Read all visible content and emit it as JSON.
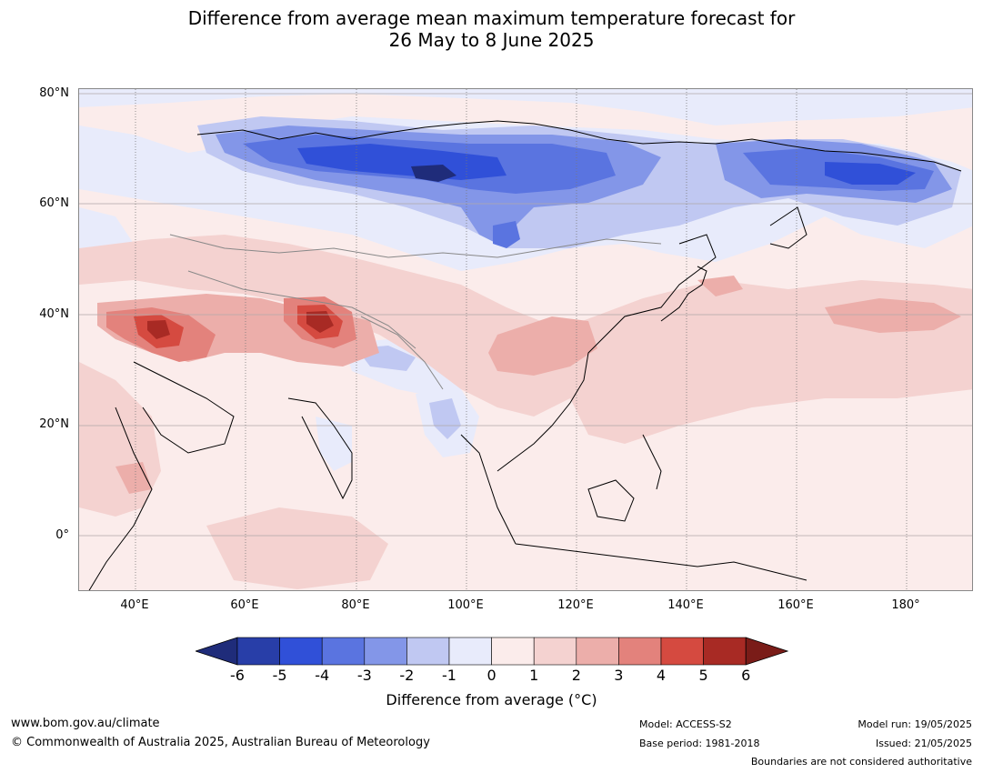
{
  "title_line1": "Difference from average mean maximum temperature forecast for",
  "title_line2": "26 May to 8 June 2025",
  "map": {
    "lat_labels": [
      "80°N",
      "60°N",
      "40°N",
      "20°N",
      "0°"
    ],
    "lon_labels": [
      "40°E",
      "60°E",
      "80°E",
      "100°E",
      "120°E",
      "140°E",
      "160°E",
      "180°"
    ]
  },
  "colorbar": {
    "ticks": [
      "-6",
      "-5",
      "-4",
      "-3",
      "-2",
      "-1",
      "0",
      "1",
      "2",
      "3",
      "4",
      "5",
      "6"
    ],
    "colors": [
      "#1f2c7a",
      "#283ea8",
      "#3050d8",
      "#5a74e0",
      "#8396e8",
      "#c0c8f2",
      "#e8ebfb",
      "#fbeceb",
      "#f4d2d0",
      "#ecaeaa",
      "#e3827c",
      "#d54a40",
      "#a82a24",
      "#7a1c18"
    ],
    "label": "Difference from average (°C)"
  },
  "footer": {
    "url": "www.bom.gov.au/climate",
    "copyright": "© Commonwealth of Australia 2025, Australian Bureau of Meteorology",
    "model": "Model: ACCESS-S2",
    "base_period": "Base period: 1981-2018",
    "model_run": "Model run: 19/05/2025",
    "issued": "Issued: 21/05/2025",
    "boundaries": "Boundaries are not considered authoritative"
  }
}
